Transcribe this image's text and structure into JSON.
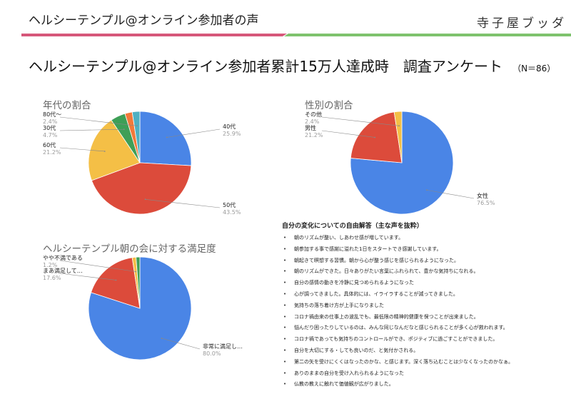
{
  "header": {
    "title": "ヘルシーテンプル@オンライン参加者の声",
    "brand": "寺子屋ブッダ",
    "accent_left": "#d6577a",
    "accent_right": "#7ec26d"
  },
  "main_title": "ヘルシーテンプル@オンライン参加者累計15万人達成時　調査アンケート",
  "main_subtitle": "（N＝86）",
  "chart_data": [
    {
      "type": "pie",
      "title": "年代の割合",
      "slices": [
        {
          "label": "40代",
          "value": 25.9,
          "pct_text": "25.9%",
          "color": "#4a85e6",
          "labeled": true
        },
        {
          "label": "50代",
          "value": 43.5,
          "pct_text": "43.5%",
          "color": "#dc4b3b",
          "labeled": true
        },
        {
          "label": "60代",
          "value": 21.2,
          "pct_text": "21.2%",
          "color": "#f4bf46",
          "labeled": true
        },
        {
          "label": "30代",
          "value": 4.7,
          "pct_text": "4.7%",
          "color": "#3e9f57",
          "labeled": true
        },
        {
          "label": "",
          "value": 2.3,
          "pct_text": "",
          "color": "#f2793a",
          "labeled": false
        },
        {
          "label": "80代～",
          "value": 2.4,
          "pct_text": "2.4%",
          "color": "#4fb0c2",
          "labeled": true
        }
      ]
    },
    {
      "type": "pie",
      "title": "性別の割合",
      "slices": [
        {
          "label": "女性",
          "value": 76.5,
          "pct_text": "76.5%",
          "color": "#4a85e6",
          "labeled": true
        },
        {
          "label": "男性",
          "value": 21.2,
          "pct_text": "21.2%",
          "color": "#dc4b3b",
          "labeled": true
        },
        {
          "label": "その他",
          "value": 2.4,
          "pct_text": "2.4%",
          "color": "#f4bf46",
          "labeled": true
        }
      ]
    },
    {
      "type": "pie",
      "title": "ヘルシーテンプル朝の会に対する満足度",
      "slices": [
        {
          "label": "非常に満足し…",
          "value": 80.0,
          "pct_text": "80.0%",
          "color": "#4a85e6",
          "labeled": true
        },
        {
          "label": "まあ満足して…",
          "value": 17.6,
          "pct_text": "17.6%",
          "color": "#dc4b3b",
          "labeled": true
        },
        {
          "label": "やや不満である",
          "value": 1.2,
          "pct_text": "1.2%",
          "color": "#f4bf46",
          "labeled": true
        },
        {
          "label": "",
          "value": 1.2,
          "pct_text": "",
          "color": "#3e9f57",
          "labeled": false
        }
      ]
    }
  ],
  "freetext": {
    "title": "自分の変化についての自由解答（主な声を抜粋）",
    "items": [
      "朝のリズムが整い、しあわせ感が増しています。",
      "朝参加する事で感謝に溢れた1日をスタートでき感謝しています。",
      "朝起きて瞑想する習慣。朝から心が整う感じを感じられるようになった。",
      "朝のリズムができた。日々ありがたい言葉にふれられて、豊かな気持ちになれる。",
      "自分の感情の動きを冷静に見つめられるようになった",
      "心が調ってきました。具体的には、イライラすることが減ってきました。",
      "気持ちの落ち着け方が上手になりました",
      "コロナ禍由来の仕事上の波乱でも、最低限の精神的健康を保つことが出来ました。",
      "悩んだり困ったりしているのは、みんな同じなんだなと感じられることが多く心が救われます。",
      "コロナ禍であっても気持ちのコントロールができ、ポジティブに過ごすことができました。",
      "自分を大切にする・しても良いのだ、と気付かされる。",
      "第二の矢を受けにくくはなったのかな、と感じます。深く落ち込むことは少なくなったのかなぁ。",
      "ありのままの自分を受け入れられるようになった",
      "仏教の教えに触れて価値観が広がりました。"
    ]
  }
}
